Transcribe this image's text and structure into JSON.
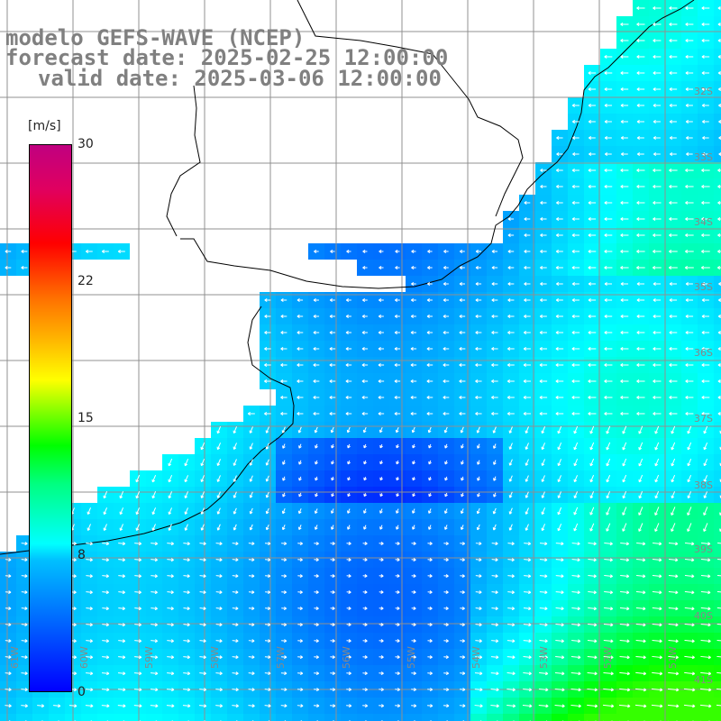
{
  "titles": {
    "line1": "modelo GEFS-WAVE (NCEP)",
    "line2": "forecast date: 2025-02-25 12:00:00",
    "line3": "valid date: 2025-03-06 12:00:00"
  },
  "colorbar": {
    "units": "[m/s]",
    "ticks": [
      "30",
      "22",
      "15",
      "8",
      "0"
    ],
    "ticks_value": [
      30,
      22,
      15,
      8,
      0
    ],
    "colors": [
      "#0000ff",
      "#0070ff",
      "#00c0ff",
      "#00ffff",
      "#00ff80",
      "#00ff00",
      "#7fff00",
      "#ffff00",
      "#ffb000",
      "#ff7000",
      "#ff0000",
      "#e00060",
      "#c00080"
    ]
  },
  "lat_labels": [
    "32S",
    "33S",
    "34S",
    "35S",
    "36S",
    "37S",
    "38S",
    "39S",
    "40S",
    "41S"
  ],
  "lon_labels": [
    "61W",
    "60W",
    "59W",
    "58W",
    "57W",
    "56W",
    "55W",
    "54W",
    "53W",
    "52W",
    "51W"
  ],
  "map": {
    "land_color": "#ffffff",
    "coast_color": "#000000",
    "grid_color": "#909090",
    "vector_color": "#ffffff"
  }
}
